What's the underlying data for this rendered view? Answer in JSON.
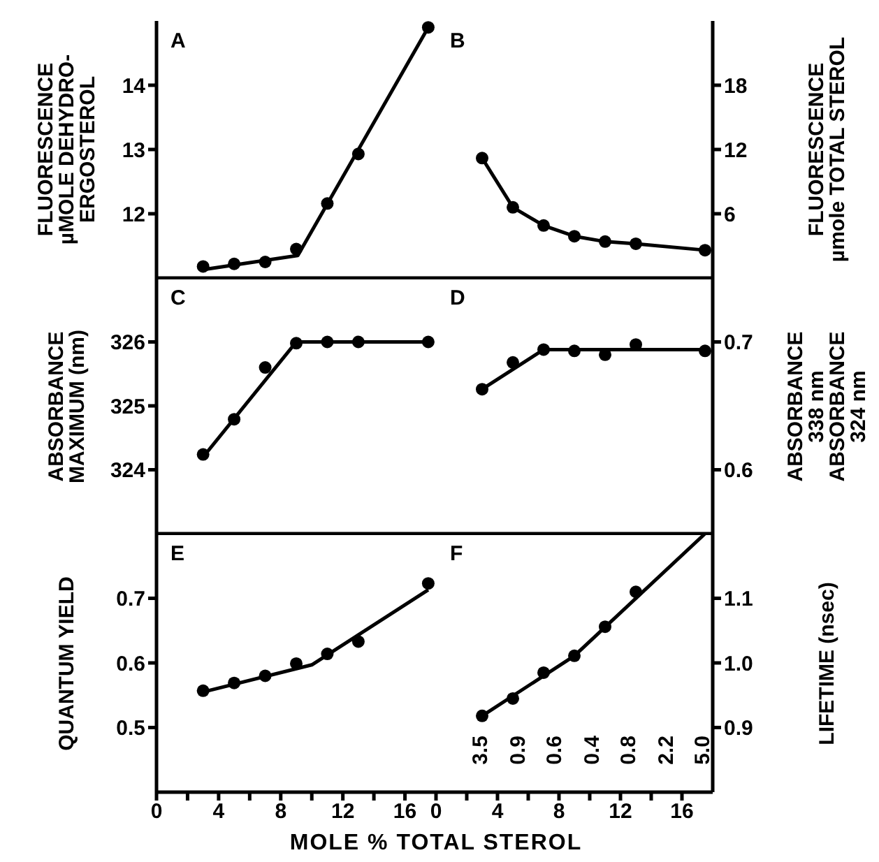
{
  "chart_data": [
    {
      "type": "scatter",
      "title": "A",
      "ylabel": "FLUORESCENCE\nµMOLE DEHYDRO-\nERGOSTEROL",
      "x": [
        3,
        5,
        7,
        9,
        11,
        13,
        17.5
      ],
      "xlim": [
        0,
        18
      ],
      "xticks": [
        0,
        4,
        8,
        12,
        16
      ],
      "ylim": [
        11,
        15
      ],
      "yticks": [
        12,
        13,
        14
      ],
      "tick_labels": "y",
      "marker": "circle",
      "series": [
        {
          "color": "#000000",
          "values": [
            11.18,
            11.22,
            11.25,
            11.45,
            12.16,
            12.93,
            14.9
          ]
        },
        {
          "type": "line",
          "marker": "none",
          "color": "#000000",
          "x": [
            3,
            9.1,
            17.5
          ],
          "values": [
            11.13,
            11.35,
            14.9
          ]
        }
      ]
    },
    {
      "type": "line",
      "title": "B",
      "y2label": "FLUORESCENCE\nµmole TOTAL STEROL",
      "x": [
        3,
        5,
        7,
        9,
        11,
        13,
        17.5
      ],
      "xlim": [
        0,
        18
      ],
      "xticks": [
        0,
        4,
        8,
        12,
        16
      ],
      "y2lim": [
        0,
        24
      ],
      "y2ticks": [
        6,
        12,
        18
      ],
      "tick_labels": "y",
      "marker": "circle",
      "series": [
        {
          "color": "#000000",
          "axis": "y2",
          "values": [
            11.2,
            6.6,
            4.9,
            3.9,
            3.4,
            3.2,
            2.6
          ]
        }
      ]
    },
    {
      "type": "scatter",
      "title": "C",
      "ylabel": "ABSORBANCE\nMAXIMUM (nm)",
      "x": [
        3,
        5,
        7,
        9,
        11,
        13,
        17.5
      ],
      "xlim": [
        0,
        18
      ],
      "xticks": [
        0,
        4,
        8,
        12,
        16
      ],
      "ylim": [
        323,
        327
      ],
      "yticks": [
        324,
        325,
        326
      ],
      "tick_labels": "y",
      "marker": "circle",
      "series": [
        {
          "color": "#000000",
          "values": [
            324.24,
            324.79,
            325.6,
            325.98,
            326,
            326,
            326
          ]
        },
        {
          "type": "line",
          "marker": "none",
          "color": "#000000",
          "x": [
            3,
            9,
            17.5
          ],
          "values": [
            324.2,
            326,
            326
          ]
        }
      ]
    },
    {
      "type": "scatter",
      "title": "D",
      "y2label": "ABSORBANCE\n338 nm\nABSORBANCE\n324 nm",
      "x": [
        3,
        5,
        7,
        9,
        11,
        13,
        17.5
      ],
      "xlim": [
        0,
        18
      ],
      "xticks": [
        0,
        4,
        8,
        12,
        16
      ],
      "y2lim": [
        0.55,
        0.75
      ],
      "y2ticks": [
        0.6,
        0.7
      ],
      "tick_labels": "y",
      "marker": "circle",
      "series": [
        {
          "color": "#000000",
          "axis": "y2",
          "values": [
            0.663,
            0.684,
            0.694,
            0.693,
            0.69,
            0.698,
            0.693
          ]
        },
        {
          "type": "line",
          "marker": "none",
          "color": "#000000",
          "axis": "y2",
          "x": [
            3,
            7,
            17.5
          ],
          "values": [
            0.663,
            0.694,
            0.694
          ]
        }
      ]
    },
    {
      "type": "scatter",
      "title": "E",
      "ylabel": "QUANTUM YIELD",
      "xlabel": "MOLE % TOTAL STEROL",
      "x": [
        3,
        5,
        7,
        9,
        11,
        13,
        17.5
      ],
      "xlim": [
        0,
        18
      ],
      "xticks": [
        0,
        {
          "value": 2,
          "label": null
        },
        4,
        {
          "value": 6,
          "label": null
        },
        8,
        {
          "value": 10,
          "label": null
        },
        12,
        {
          "value": 14,
          "label": null
        },
        16
      ],
      "ylim": [
        0.4,
        0.8
      ],
      "yticks": [
        0.5,
        0.6,
        0.7
      ],
      "marker": "circle",
      "series": [
        {
          "color": "#000000",
          "values": [
            0.557,
            0.569,
            0.58,
            0.599,
            0.614,
            0.633,
            0.723
          ]
        },
        {
          "type": "line",
          "marker": "none",
          "color": "#000000",
          "x": [
            3,
            10,
            17.5
          ],
          "values": [
            0.555,
            0.597,
            0.713
          ]
        }
      ]
    },
    {
      "type": "scatter",
      "title": "F",
      "y2label": "LIFETIME (nsec)",
      "x": [
        3,
        5,
        7,
        9,
        11,
        13
      ],
      "xlim": [
        0,
        18
      ],
      "xticks": [
        0,
        {
          "value": 2,
          "label": null
        },
        4,
        {
          "value": 6,
          "label": null
        },
        8,
        {
          "value": 10,
          "label": null
        },
        12,
        {
          "value": 14,
          "label": null
        },
        16
      ],
      "y2lim": [
        0.8,
        1.2
      ],
      "y2ticks": [
        0.9,
        {
          "value": 1,
          "label": "1.0"
        },
        1.1
      ],
      "marker": "circle",
      "annotations": [
        "3.5",
        "0.9",
        "0.6",
        "0.4",
        "0.8",
        "2.2",
        "5.0"
      ],
      "series": [
        {
          "color": "#000000",
          "axis": "y2",
          "values": [
            0.918,
            0.945,
            0.985,
            1.011,
            1.056,
            1.11
          ]
        },
        {
          "type": "line",
          "marker": "none",
          "color": "#000000",
          "axis": "y2",
          "x": [
            3,
            9,
            17.5
          ],
          "values": [
            0.918,
            1.011,
            1.2
          ]
        }
      ]
    }
  ]
}
